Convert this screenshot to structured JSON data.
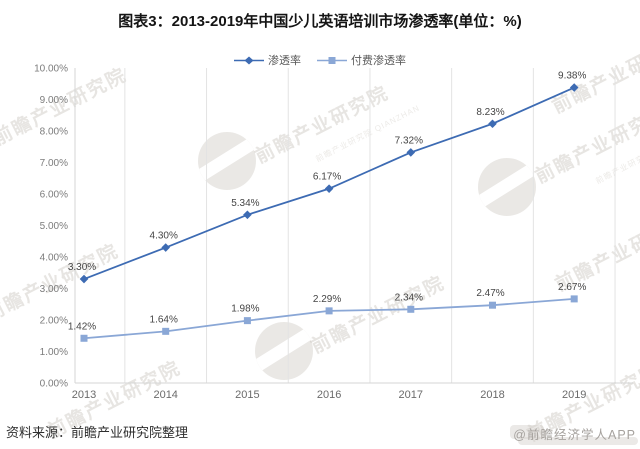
{
  "chart_data": {
    "type": "line",
    "title": "图表3：2013-2019年中国少儿英语培训市场渗透率(单位：%)",
    "categories": [
      "2013",
      "2014",
      "2015",
      "2016",
      "2017",
      "2018",
      "2019"
    ],
    "series": [
      {
        "name": "渗透率",
        "marker": "diamond",
        "color": "#3d6bb3",
        "values": [
          3.3,
          4.3,
          5.34,
          6.17,
          7.32,
          8.23,
          9.38
        ],
        "labels": [
          "3.30%",
          "4.30%",
          "5.34%",
          "6.17%",
          "7.32%",
          "8.23%",
          "9.38%"
        ]
      },
      {
        "name": "付费渗透率",
        "marker": "square",
        "color": "#8aa7d6",
        "values": [
          1.42,
          1.64,
          1.98,
          2.29,
          2.34,
          2.47,
          2.67
        ],
        "labels": [
          "1.42%",
          "1.64%",
          "1.98%",
          "2.29%",
          "2.34%",
          "2.47%",
          "2.67%"
        ]
      }
    ],
    "ylim": [
      0,
      10
    ],
    "ytick_labels": [
      "0.00%",
      "1.00%",
      "2.00%",
      "3.00%",
      "4.00%",
      "5.00%",
      "6.00%",
      "7.00%",
      "8.00%",
      "9.00%",
      "10.00%"
    ],
    "xlabel": "",
    "ylabel": "",
    "grid": "vertical-only",
    "legend_position": "top-center"
  },
  "footer": {
    "source": "资料来源：前瞻产业研究院整理"
  },
  "watermark": {
    "brand": "前瞻产业研究院",
    "brand_sub": "前瞻产业研究院 QIANZHAN",
    "app_credit": "@前瞻经济学人APP"
  },
  "colors": {
    "grid": "#e3e3e3",
    "axis": "#d6d6d6",
    "title_text": "#141414",
    "tick_text": "#7c7c7c",
    "data_label_text": "#454545",
    "source_text": "#2e2e2e",
    "watermark": "#bab2aa",
    "series_penetration": "#3d6bb3",
    "series_paid_penetration": "#8aa7d6"
  }
}
